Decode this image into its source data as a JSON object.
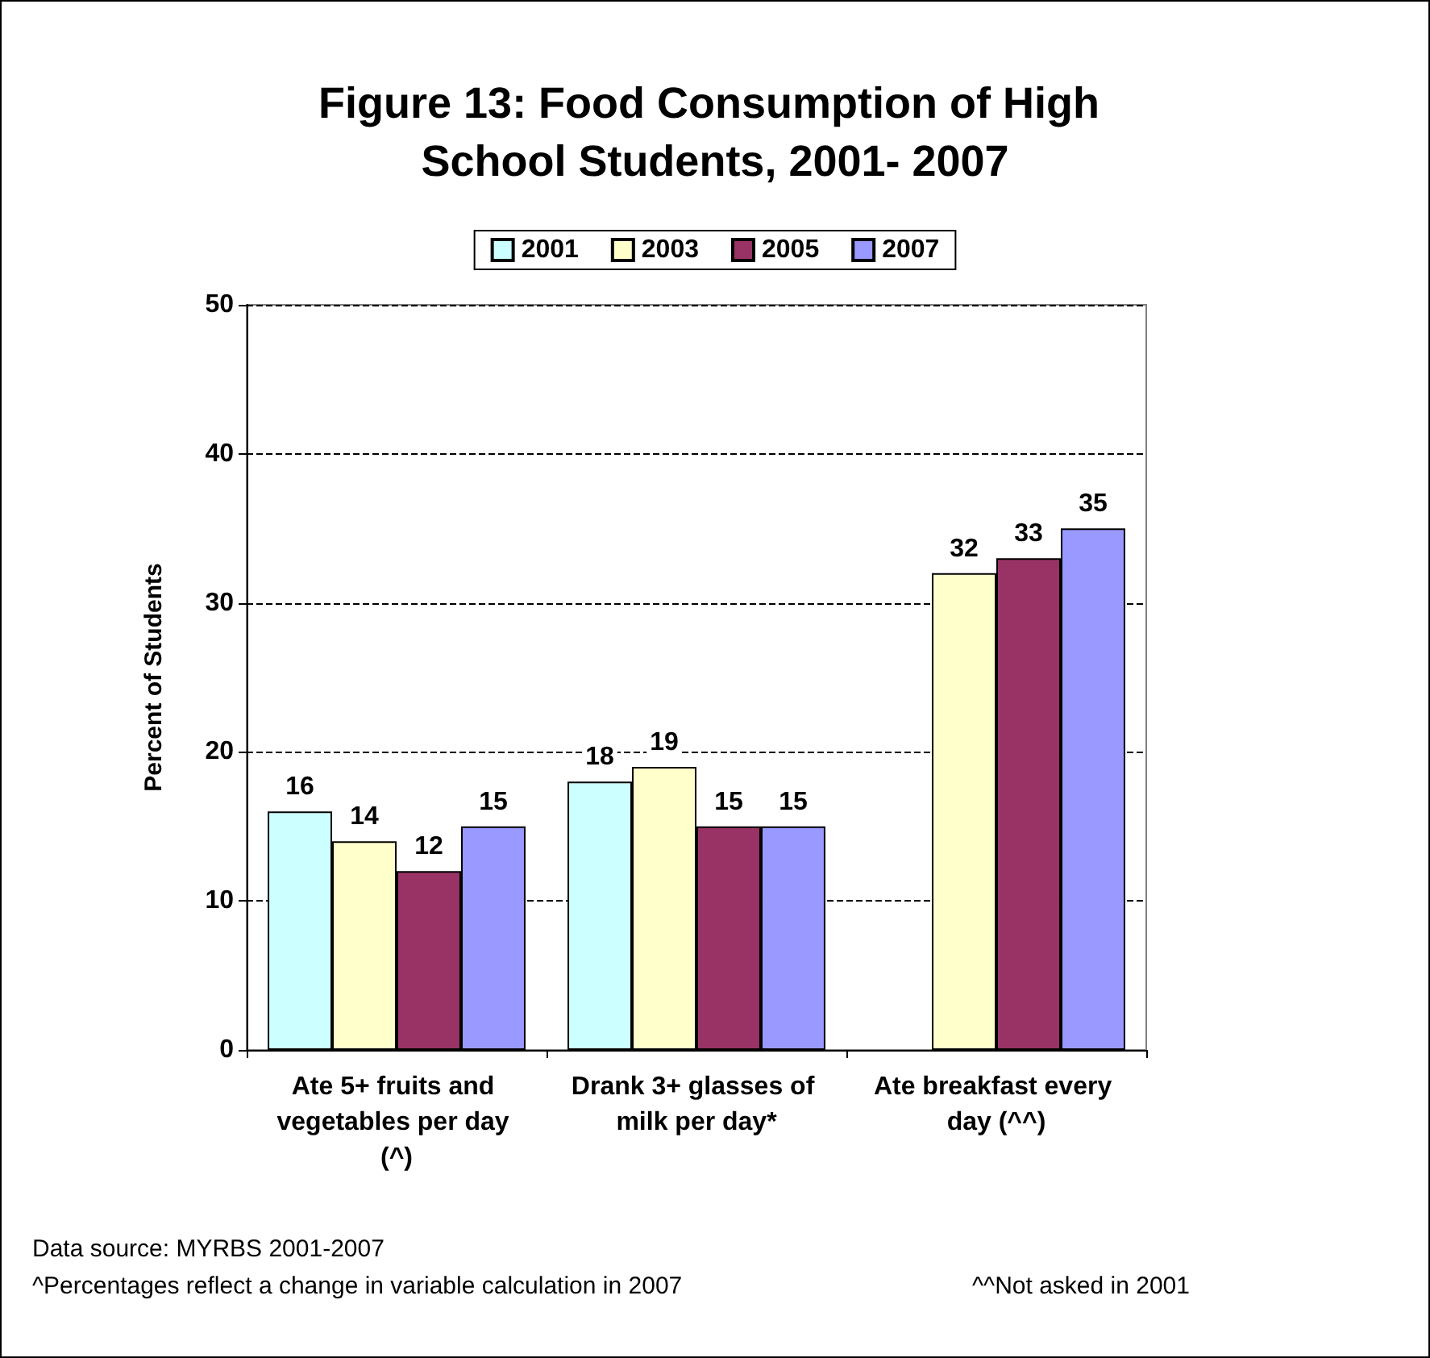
{
  "chart_data": {
    "type": "bar",
    "title": "Figure 13: Food Consumption of High School Students, 2001- 2007",
    "ylabel": "Percent of Students",
    "categories": [
      "Ate 5+ fruits and vegetables per day (^)",
      "Drank 3+ glasses of milk per day*",
      "Ate breakfast every day (^^)"
    ],
    "series": [
      {
        "name": "2001",
        "color": "#ccffff",
        "values": [
          16,
          18,
          null
        ]
      },
      {
        "name": "2003",
        "color": "#ffffcc",
        "values": [
          14,
          19,
          32
        ]
      },
      {
        "name": "2005",
        "color": "#993366",
        "values": [
          12,
          15,
          33
        ]
      },
      {
        "name": "2007",
        "color": "#9999ff",
        "values": [
          15,
          15,
          35
        ]
      }
    ],
    "ylim": [
      0,
      50
    ],
    "yticks": [
      0,
      10,
      20,
      30,
      40,
      50
    ],
    "grid": "y",
    "legend": "top",
    "data_labels": true,
    "annotations": [
      "Data source: MYRBS 2001-2007",
      "^Percentages reflect a change in variable calculation in 2007",
      "^^Not asked in 2001"
    ]
  }
}
